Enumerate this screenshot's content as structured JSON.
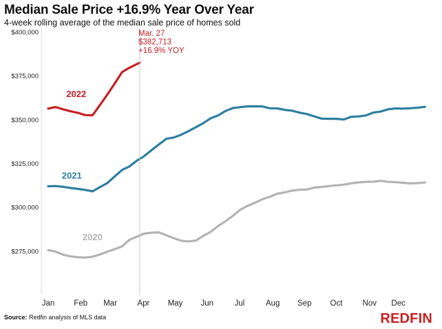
{
  "header": {
    "title": "Median Sale Price +16.9% Year Over Year",
    "subtitle": "4-week rolling average of the median sale price of homes sold"
  },
  "footer": {
    "source_label": "Source:",
    "source_text": "Redfin analysis of MLS data",
    "brand": "REDFIN"
  },
  "annotation": {
    "line1": "Mar. 27",
    "line2": "$382,713",
    "line3": "+16.9% YOY",
    "week": 12.4
  },
  "chart_data": {
    "type": "line",
    "title": "Median Sale Price +16.9% Year Over Year",
    "subtitle": "4-week rolling average of the median sale price of homes sold",
    "x_unit": "week of year",
    "xlim": [
      0,
      52
    ],
    "ylim": [
      250000,
      400000
    ],
    "grid": false,
    "x_ticks": [
      {
        "label": "Jan",
        "week": 0
      },
      {
        "label": "Feb",
        "week": 4.4
      },
      {
        "label": "Mar",
        "week": 8.4
      },
      {
        "label": "Apr",
        "week": 12.9
      },
      {
        "label": "May",
        "week": 17.2
      },
      {
        "label": "Jun",
        "week": 21.5
      },
      {
        "label": "Jul",
        "week": 25.9
      },
      {
        "label": "Aug",
        "week": 30.4
      },
      {
        "label": "Sep",
        "week": 34.7
      },
      {
        "label": "Oct",
        "week": 39.0
      },
      {
        "label": "Nov",
        "week": 43.5
      },
      {
        "label": "Dec",
        "week": 47.4
      }
    ],
    "y_ticks": [
      {
        "label": "$400,000",
        "value": 400000
      },
      {
        "label": "$375,000",
        "value": 375000
      },
      {
        "label": "$350,000",
        "value": 350000
      },
      {
        "label": "$325,000",
        "value": 325000
      },
      {
        "label": "$300,000",
        "value": 300000
      },
      {
        "label": "$275,000",
        "value": 275000
      }
    ],
    "series": [
      {
        "name": "2022",
        "color": "#c62026",
        "label_point": {
          "week": 3.8,
          "value": 363000
        },
        "x": [
          0,
          1,
          2,
          3,
          4,
          5,
          6,
          7,
          8,
          9,
          10,
          11,
          12.4
        ],
        "values": [
          356500,
          357400,
          356100,
          355000,
          354100,
          352800,
          352700,
          358500,
          364500,
          370800,
          377300,
          379800,
          382713
        ]
      },
      {
        "name": "2021",
        "color": "#2e7fa0",
        "label_point": {
          "week": 3.2,
          "value": 316500
        },
        "x": [
          0,
          1,
          2,
          3,
          4,
          5,
          6,
          7,
          8,
          9,
          10,
          11,
          12,
          13,
          14,
          15,
          16,
          17,
          18,
          19,
          20,
          21,
          22,
          23,
          24,
          25,
          26,
          27,
          28,
          29,
          30,
          31,
          32,
          33,
          34,
          35,
          36,
          37,
          38,
          39,
          40,
          41,
          42,
          43,
          44,
          45,
          46,
          47,
          48,
          49,
          50,
          51
        ],
        "values": [
          312200,
          312300,
          311900,
          311200,
          310700,
          310100,
          309300,
          311700,
          314000,
          317800,
          321500,
          323500,
          326800,
          329400,
          332800,
          336100,
          339300,
          340000,
          341600,
          343700,
          345900,
          348200,
          351000,
          352600,
          355100,
          356800,
          357300,
          357800,
          357800,
          357700,
          356700,
          356600,
          355800,
          355300,
          354200,
          353400,
          352100,
          350800,
          350700,
          350700,
          350300,
          351800,
          352000,
          352600,
          354200,
          354800,
          356100,
          356600,
          356500,
          356700,
          357000,
          357500
        ]
      },
      {
        "name": "2020",
        "color": "#b3b3b3",
        "label_point": {
          "week": 6.0,
          "value": 281500
        },
        "x": [
          0,
          1,
          2,
          3,
          4,
          5,
          6,
          7,
          8,
          9,
          10,
          11,
          12,
          13,
          14,
          15,
          16,
          17,
          18,
          19,
          20,
          21,
          22,
          23,
          24,
          25,
          26,
          27,
          28,
          29,
          30,
          31,
          32,
          33,
          34,
          35,
          36,
          37,
          38,
          39,
          40,
          41,
          42,
          43,
          44,
          45,
          46,
          47,
          48,
          49,
          50,
          51
        ],
        "values": [
          275800,
          274900,
          273200,
          272200,
          271700,
          271500,
          272000,
          273300,
          274800,
          276300,
          277900,
          281600,
          283400,
          285200,
          285700,
          285900,
          284200,
          282600,
          281100,
          280700,
          281200,
          283900,
          286200,
          289500,
          292200,
          295300,
          298800,
          301000,
          302800,
          304800,
          306200,
          307900,
          308700,
          309700,
          310200,
          310300,
          311400,
          311800,
          312300,
          312700,
          313100,
          313900,
          314400,
          314700,
          314800,
          315300,
          314700,
          314500,
          314200,
          313800,
          314000,
          314300
        ]
      }
    ]
  }
}
